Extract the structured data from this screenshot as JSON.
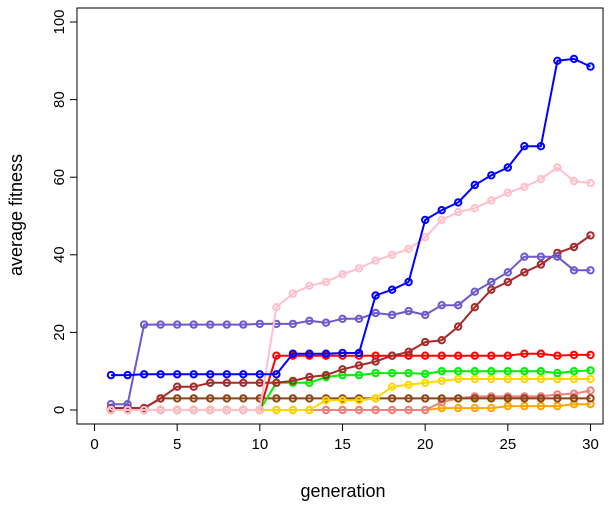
{
  "chart_data": {
    "type": "line",
    "title": "",
    "xlabel": "generation",
    "ylabel": "average fitness",
    "xlim": [
      0,
      30
    ],
    "ylim": [
      0,
      100
    ],
    "x_ticks": [
      0,
      5,
      10,
      15,
      20,
      25,
      30
    ],
    "y_ticks": [
      0,
      20,
      40,
      60,
      80,
      100
    ],
    "grid": false,
    "legend": "none",
    "x": [
      1,
      2,
      3,
      4,
      5,
      6,
      7,
      8,
      9,
      10,
      11,
      12,
      13,
      14,
      15,
      16,
      17,
      18,
      19,
      20,
      21,
      22,
      23,
      24,
      25,
      26,
      27,
      28,
      29,
      30
    ],
    "series": [
      {
        "color": "#0000ff",
        "values": [
          9,
          9,
          9.2,
          9.2,
          9.2,
          9.2,
          9.2,
          9.2,
          9.2,
          9.2,
          9.2,
          14.5,
          14.5,
          14.5,
          14.7,
          14.7,
          29.5,
          31,
          33,
          49,
          51.5,
          53.5,
          58,
          60.5,
          62.5,
          68,
          68,
          90,
          90.5,
          88.5
        ]
      },
      {
        "color": "#ffc0cb",
        "values": [
          0,
          0,
          0,
          0,
          0,
          0,
          0,
          0,
          0,
          0,
          26.5,
          30,
          32,
          33,
          35,
          36.5,
          38.5,
          40,
          41.5,
          44.5,
          49,
          51,
          52,
          54,
          56,
          57.5,
          59.5,
          62.5,
          59,
          58.5
        ]
      },
      {
        "color": "#6a5acd",
        "values": [
          1.5,
          1.5,
          22,
          22,
          22,
          22,
          22,
          22,
          22,
          22.2,
          22.2,
          22.2,
          23,
          22.5,
          23.5,
          23.5,
          25,
          24.5,
          25.5,
          24.5,
          27,
          27,
          30.5,
          33,
          35.5,
          39.5,
          39.5,
          39.5,
          36,
          36
        ]
      },
      {
        "color": "#a52a2a",
        "values": [
          0.5,
          0.5,
          0.5,
          3,
          6,
          6,
          7,
          7,
          7,
          7,
          7,
          7.5,
          8.5,
          9,
          10.5,
          11.5,
          12.5,
          14,
          15,
          17.5,
          18,
          21.5,
          26.5,
          31,
          33,
          35.5,
          37.5,
          40.5,
          42,
          45
        ]
      },
      {
        "color": "#ff0000",
        "values": [
          0,
          0,
          0,
          0,
          0,
          0,
          0,
          0,
          0,
          0,
          14,
          14,
          14,
          14,
          14,
          14,
          14,
          14,
          14,
          14,
          14,
          14,
          14,
          14,
          14,
          14.5,
          14.5,
          14,
          14.2,
          14.2
        ]
      },
      {
        "color": "#00ee00",
        "values": [
          0,
          0,
          0,
          0,
          0,
          0,
          0,
          0,
          0,
          0,
          7,
          7,
          7,
          8.5,
          9,
          9,
          9.5,
          9.5,
          9.5,
          9.3,
          10,
          10,
          10,
          10,
          10,
          10,
          10,
          9.5,
          10,
          10.2
        ]
      },
      {
        "color": "#ffd700",
        "values": [
          0,
          0,
          0,
          0,
          0,
          0,
          0,
          0,
          0,
          0,
          0,
          0,
          0,
          2.5,
          2.5,
          2.5,
          3,
          6,
          6.5,
          7,
          7.5,
          8,
          8,
          8,
          8,
          8,
          8,
          8,
          8,
          8
        ]
      },
      {
        "color": "#8b4513",
        "values": [
          0.5,
          0.5,
          0.5,
          3,
          3,
          3,
          3,
          3,
          3,
          3,
          3,
          3,
          3,
          3,
          3,
          3,
          3,
          3,
          3,
          3,
          3,
          3,
          3,
          3,
          3,
          3,
          3,
          3,
          3,
          3
        ]
      },
      {
        "color": "#f08080",
        "values": [
          0,
          0,
          0,
          0,
          0,
          0,
          0,
          0,
          0,
          0,
          0,
          0,
          0,
          0,
          0,
          0,
          0,
          0,
          0,
          0,
          2,
          3,
          3.5,
          3.5,
          3.5,
          3.5,
          3.5,
          4,
          4.2,
          5
        ]
      },
      {
        "color": "#ffa500",
        "values": [
          0,
          0,
          0,
          0,
          0,
          0,
          0,
          0,
          0,
          0,
          0,
          0,
          0,
          0,
          0,
          0,
          0,
          0,
          0,
          0,
          0.5,
          0.5,
          0.5,
          0.5,
          1,
          1,
          1,
          1,
          1.5,
          1.5
        ]
      }
    ]
  }
}
